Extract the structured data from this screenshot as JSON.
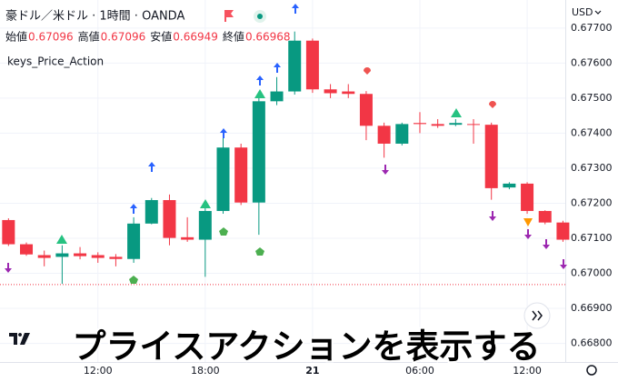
{
  "header": {
    "symbol": "豪ドル／米ドル · 1時間 · OANDA",
    "ohlc": [
      {
        "label": "始値",
        "value": "0.67096"
      },
      {
        "label": "高値",
        "value": "0.67096"
      },
      {
        "label": "安値",
        "value": "0.66949"
      },
      {
        "label": "終値",
        "value": "0.66968"
      }
    ],
    "indicator": "keys_Price_Action",
    "currency": "USD"
  },
  "banner": "プライスアクションを表示する",
  "chart_data": {
    "type": "candlestick",
    "categories": [
      null,
      null,
      null,
      null,
      null,
      "12:00",
      null,
      null,
      null,
      null,
      null,
      "18:00",
      null,
      null,
      null,
      null,
      null,
      "21",
      null,
      null,
      null,
      null,
      null,
      "06:00",
      null,
      null,
      null,
      null,
      null,
      "12:00",
      null,
      null
    ],
    "open": [
      0.67152,
      0.67083,
      0.67052,
      0.67047,
      0.67057,
      0.67052,
      0.67047,
      0.67041,
      0.67142,
      0.67209,
      0.67103,
      0.67096,
      0.67178,
      0.67359,
      0.67202,
      0.67491,
      0.67519,
      0.67664,
      0.67525,
      0.67519,
      0.67512,
      0.67421,
      0.6737,
      0.67429,
      0.67426,
      0.67424,
      0.67426,
      0.67424,
      0.67245,
      0.67256,
      0.67178,
      0.67145
    ],
    "high": [
      0.67157,
      0.67088,
      0.67065,
      0.6708,
      0.67075,
      0.6706,
      0.67055,
      0.6716,
      0.67215,
      0.67225,
      0.6716,
      0.6719,
      0.6739,
      0.6737,
      0.675,
      0.6756,
      0.6769,
      0.6767,
      0.6754,
      0.6754,
      0.6752,
      0.6743,
      0.6743,
      0.6746,
      0.6744,
      0.6744,
      0.6744,
      0.6743,
      0.6726,
      0.6726,
      0.6718,
      0.6715
    ],
    "low": [
      0.67078,
      0.6705,
      0.6702,
      0.6697,
      0.6704,
      0.6703,
      0.6702,
      0.6703,
      0.6714,
      0.6708,
      0.6709,
      0.6699,
      0.6717,
      0.67195,
      0.6711,
      0.6748,
      0.6751,
      0.67515,
      0.675,
      0.675,
      0.6738,
      0.6733,
      0.67365,
      0.674,
      0.67415,
      0.6742,
      0.6737,
      0.6721,
      0.6724,
      0.6717,
      0.6714,
      0.6709
    ],
    "close": [
      0.67083,
      0.67054,
      0.67044,
      0.67057,
      0.67049,
      0.67044,
      0.67041,
      0.67142,
      0.67209,
      0.67101,
      0.67096,
      0.67178,
      0.67359,
      0.67202,
      0.67491,
      0.67519,
      0.67664,
      0.67525,
      0.67514,
      0.67512,
      0.67421,
      0.6737,
      0.67426,
      0.67426,
      0.67421,
      0.67429,
      0.67424,
      0.67243,
      0.67256,
      0.67178,
      0.67145,
      0.67096
    ],
    "ylim": [
      0.66747,
      0.6778
    ],
    "yticks": [
      {
        "value": 0.677,
        "label": "0.67700"
      },
      {
        "value": 0.676,
        "label": "0.67600"
      },
      {
        "value": 0.675,
        "label": "0.67500"
      },
      {
        "value": 0.674,
        "label": "0.67400"
      },
      {
        "value": 0.673,
        "label": "0.67300"
      },
      {
        "value": 0.672,
        "label": "0.67200"
      },
      {
        "value": 0.671,
        "label": "0.67100"
      },
      {
        "value": 0.67,
        "label": "0.67000"
      },
      {
        "value": 0.669,
        "label": "0.66900"
      },
      {
        "value": 0.668,
        "label": "0.66800"
      }
    ],
    "grid": true,
    "up_color": "#089981",
    "down_color": "#f23645",
    "last_price": 0.66968
  }
}
